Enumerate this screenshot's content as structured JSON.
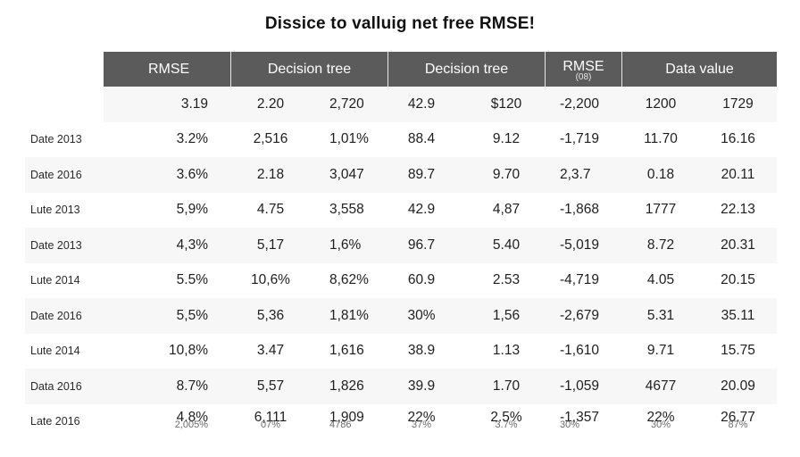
{
  "title": "Dissice to valluig net free RMSE!",
  "header": {
    "col_rmse": "RMSE",
    "col_tree1": "Decision tree",
    "col_tree2": "Decision tree",
    "col_rmse2": "RMSE",
    "col_rmse2_sub": "(08)",
    "col_data": "Data value"
  },
  "rows": [
    {
      "label": "",
      "v": [
        "3.19",
        "2.20",
        "2,720",
        "42.9",
        "$120",
        "-2,200",
        "1200",
        "1729"
      ]
    },
    {
      "label": "Date 2013",
      "v": [
        "3.2%",
        "2,516",
        "1,01%",
        "88.4",
        "9.12",
        "-1,719",
        "11.70",
        "16.16"
      ]
    },
    {
      "label": "Date 2016",
      "v": [
        "3.6%",
        "2.18",
        "3,047",
        "89.7",
        "9.70",
        "2,3.7",
        "0.18",
        "20.11"
      ]
    },
    {
      "label": "Lute 2013",
      "v": [
        "5,9%",
        "4.75",
        "3,558",
        "42.9",
        "4,87",
        "-1,868",
        "1777",
        "22.13"
      ]
    },
    {
      "label": "Date 2013",
      "v": [
        "4,3%",
        "5,17",
        "1,6%",
        "96.7",
        "5.40",
        "-5,019",
        "8.72",
        "20.31"
      ]
    },
    {
      "label": "Lute 2014",
      "v": [
        "5.5%",
        "10,6%",
        "8,62%",
        "60.9",
        "2.53",
        "-4,719",
        "4.05",
        "20.15"
      ]
    },
    {
      "label": "Date 2016",
      "v": [
        "5,5%",
        "5,36",
        "1,81%",
        "30%",
        "1,56",
        "-2,679",
        "5.31",
        "35.11"
      ]
    },
    {
      "label": "Lute 2014",
      "v": [
        "10,8%",
        "3.47",
        "1,616",
        "38.9",
        "1.13",
        "-1,610",
        "9.71",
        "15.75"
      ]
    },
    {
      "label": "Data 2016",
      "v": [
        "8.7%",
        "5,57",
        "1,826",
        "39.9",
        "1.70",
        "-1,059",
        "4677",
        "20.09"
      ]
    },
    {
      "label": "Late 2016",
      "v": [
        "4.8%",
        "6,111",
        "1,909",
        "22%",
        "2.5%",
        "-1,357",
        "22%",
        "26.77"
      ],
      "sub": [
        "2,005%",
        "07%",
        "4786",
        "37%",
        "3.7%",
        "30%",
        "30%",
        "87%"
      ]
    }
  ]
}
